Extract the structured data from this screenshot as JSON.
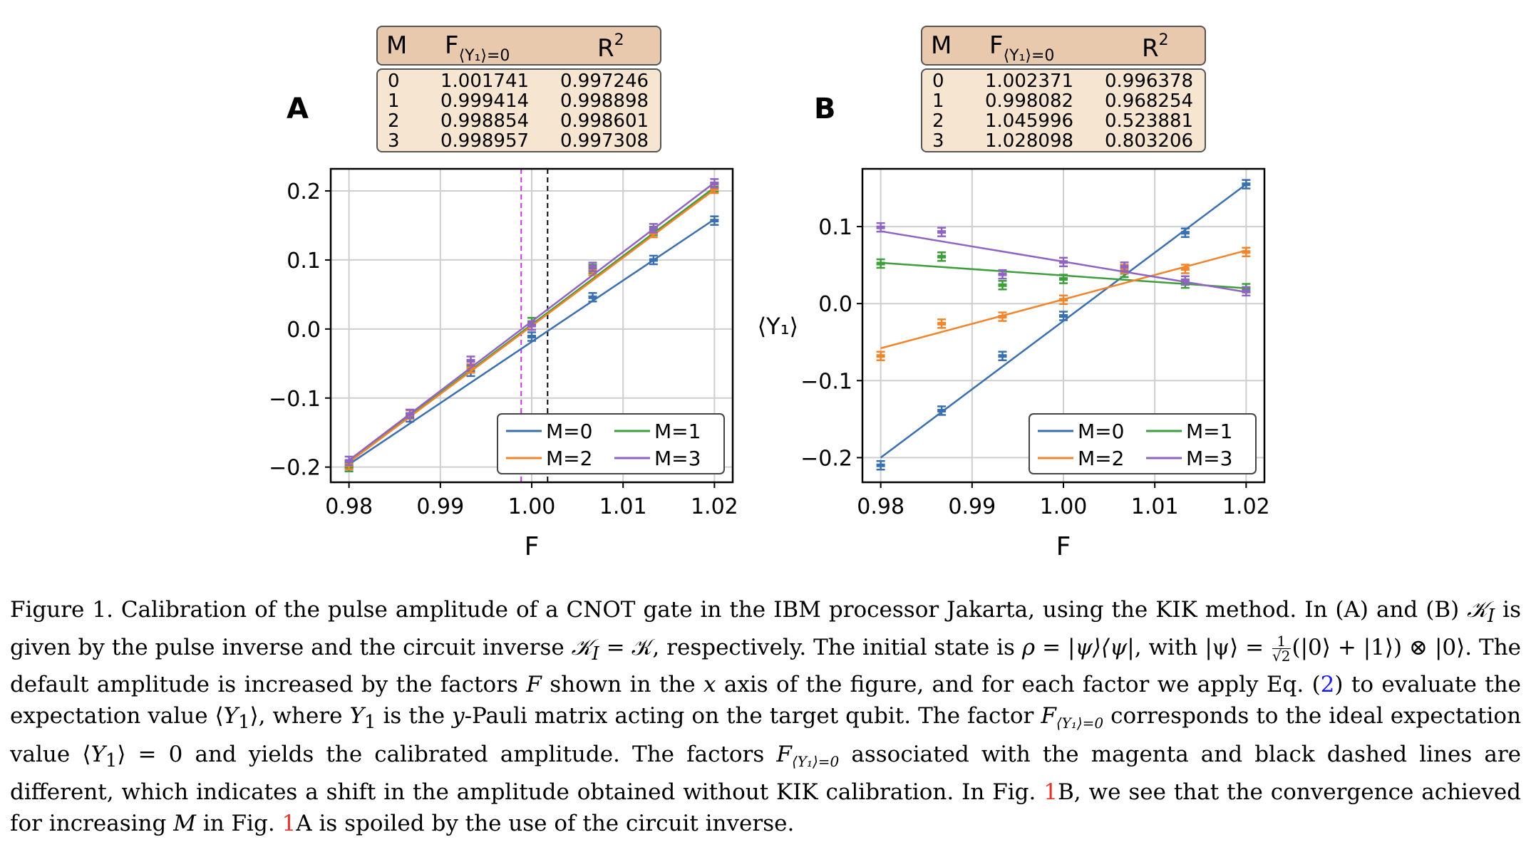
{
  "panels": [
    {
      "letter": "A",
      "table": {
        "headers": [
          "M",
          "F",
          "⟨Y₁⟩=0",
          "R",
          "2"
        ],
        "rows": [
          [
            "0",
            "1.001741",
            "0.997246"
          ],
          [
            "1",
            "0.999414",
            "0.998898"
          ],
          [
            "2",
            "0.998854",
            "0.998601"
          ],
          [
            "3",
            "0.998957",
            "0.997308"
          ]
        ]
      }
    },
    {
      "letter": "B",
      "table": {
        "headers": [
          "M",
          "F",
          "⟨Y₁⟩=0",
          "R",
          "2"
        ],
        "rows": [
          [
            "0",
            "1.002371",
            "0.996378"
          ],
          [
            "1",
            "0.998082",
            "0.968254"
          ],
          [
            "2",
            "1.045996",
            "0.523881"
          ],
          [
            "3",
            "1.028098",
            "0.803206"
          ]
        ]
      }
    }
  ],
  "colors": {
    "M0": "#3a6fb0",
    "M1": "#3f9e3c",
    "M2": "#f2852b",
    "M3": "#8f64c2",
    "magenta": "#c436d8",
    "black": "#000000",
    "header": "#e9c9ad",
    "body": "#f6e5d1"
  },
  "chart_data": [
    {
      "type": "line",
      "panel": "A",
      "xlabel": "F",
      "ylabel": "",
      "xlim": [
        0.978,
        1.022
      ],
      "ylim": [
        -0.222,
        0.232
      ],
      "xticks": [
        "0.98",
        "0.99",
        "1.00",
        "1.01",
        "1.02"
      ],
      "yticks": [
        "−0.2",
        "−0.1",
        "0.0",
        "0.1",
        "0.2"
      ],
      "grid": true,
      "legend_position": "lower-right",
      "x": [
        0.98,
        0.98667,
        0.99333,
        1.0,
        1.00667,
        1.01333,
        1.02
      ],
      "series": [
        {
          "name": "M=0",
          "points": [
            -0.2,
            -0.128,
            -0.062,
            -0.011,
            0.046,
            0.1,
            0.157
          ],
          "fit": [
            [
              0.98,
              -0.196
            ],
            [
              1.02,
              0.159
            ]
          ]
        },
        {
          "name": "M=1",
          "points": [
            -0.2,
            -0.123,
            -0.052,
            0.01,
            0.087,
            0.142,
            0.205
          ],
          "fit": [
            [
              0.98,
              -0.192
            ],
            [
              1.02,
              0.205
            ]
          ]
        },
        {
          "name": "M=2",
          "points": [
            -0.197,
            -0.124,
            -0.057,
            0.005,
            0.084,
            0.139,
            0.203
          ],
          "fit": [
            [
              0.98,
              -0.193
            ],
            [
              1.02,
              0.202
            ]
          ]
        },
        {
          "name": "M=3",
          "points": [
            -0.191,
            -0.123,
            -0.046,
            0.005,
            0.09,
            0.146,
            0.211
          ],
          "fit": [
            [
              0.98,
              -0.19
            ],
            [
              1.02,
              0.212
            ]
          ]
        }
      ],
      "vlines": [
        {
          "x": 0.99885,
          "style": "magenta-dashed"
        },
        {
          "x": 1.00174,
          "style": "black-dashed"
        }
      ]
    },
    {
      "type": "line",
      "panel": "B",
      "xlabel": "F",
      "ylabel": "⟨Y₁⟩",
      "xlim": [
        0.978,
        1.022
      ],
      "ylim": [
        -0.232,
        0.175
      ],
      "xticks": [
        "0.98",
        "0.99",
        "1.00",
        "1.01",
        "1.02"
      ],
      "yticks": [
        "−0.2",
        "−0.1",
        "0.0",
        "0.1"
      ],
      "grid": true,
      "legend_position": "lower-right",
      "x": [
        0.98,
        0.98667,
        0.99333,
        1.0,
        1.00667,
        1.01333,
        1.02
      ],
      "series": [
        {
          "name": "M=0",
          "points": [
            -0.21,
            -0.139,
            -0.068,
            -0.016,
            0.04,
            0.092,
            0.155
          ],
          "fit": [
            [
              0.98,
              -0.2
            ],
            [
              1.02,
              0.155
            ]
          ]
        },
        {
          "name": "M=1",
          "points": [
            0.052,
            0.061,
            0.024,
            0.032,
            0.04,
            0.026,
            0.02
          ],
          "fit": [
            [
              0.98,
              0.053
            ],
            [
              1.02,
              0.02
            ]
          ]
        },
        {
          "name": "M=2",
          "points": [
            -0.068,
            -0.026,
            -0.017,
            0.005,
            0.045,
            0.045,
            0.067
          ],
          "fit": [
            [
              0.98,
              -0.058
            ],
            [
              1.02,
              0.069
            ]
          ]
        },
        {
          "name": "M=3",
          "points": [
            0.099,
            0.093,
            0.038,
            0.054,
            0.048,
            0.03,
            0.016
          ],
          "fit": [
            [
              0.98,
              0.094
            ],
            [
              1.02,
              0.015
            ]
          ]
        }
      ]
    }
  ],
  "caption": {
    "figure_label": "Figure 1.",
    "s1": "Calibration of the pulse amplitude of a CNOT gate in the IBM processor Jakarta, using the KIK method. In (A) and (B)",
    "KI": "𝒦",
    "KI_sub": "I",
    "s2": "is given by the pulse inverse and the circuit inverse",
    "eq1": "= 𝒦, respectively. The initial state is",
    "rho": "ρ = |ψ⟩⟨ψ|",
    "s3": ", with",
    "psi": "|ψ⟩ =",
    "frac_num": "1",
    "frac_den": "√2",
    "psi_rest": "(|0⟩ + |1⟩) ⊗ |0⟩",
    "s4": ". The default amplitude is increased by the factors",
    "F": "F",
    "s5": "shown in the",
    "xvar": "x",
    "s6": "axis of the figure, and for each factor we apply Eq. (",
    "eq_ref": "2",
    "s7": ") to evaluate the expectation value ⟨",
    "Y": "Y",
    "sub1": "1",
    "s8": "⟩, where",
    "s9": "is the",
    "yvar": "y",
    "s10": "-Pauli matrix acting on the target qubit. The factor",
    "Fsub": "⟨Y₁⟩=0",
    "s11": "corresponds to the ideal expectation value ⟨",
    "s12": "⟩ = 0 and yields the calibrated amplitude. The factors",
    "s13": "associated with the magenta and black dashed lines are different, which indicates a shift in the amplitude obtained without KIK calibration. In Fig.",
    "fig_ref": "1",
    "s14": "B, we see that the convergence achieved for increasing",
    "M": "M",
    "s15": "in Fig.",
    "s16": "A is spoiled by the use of the circuit inverse."
  }
}
